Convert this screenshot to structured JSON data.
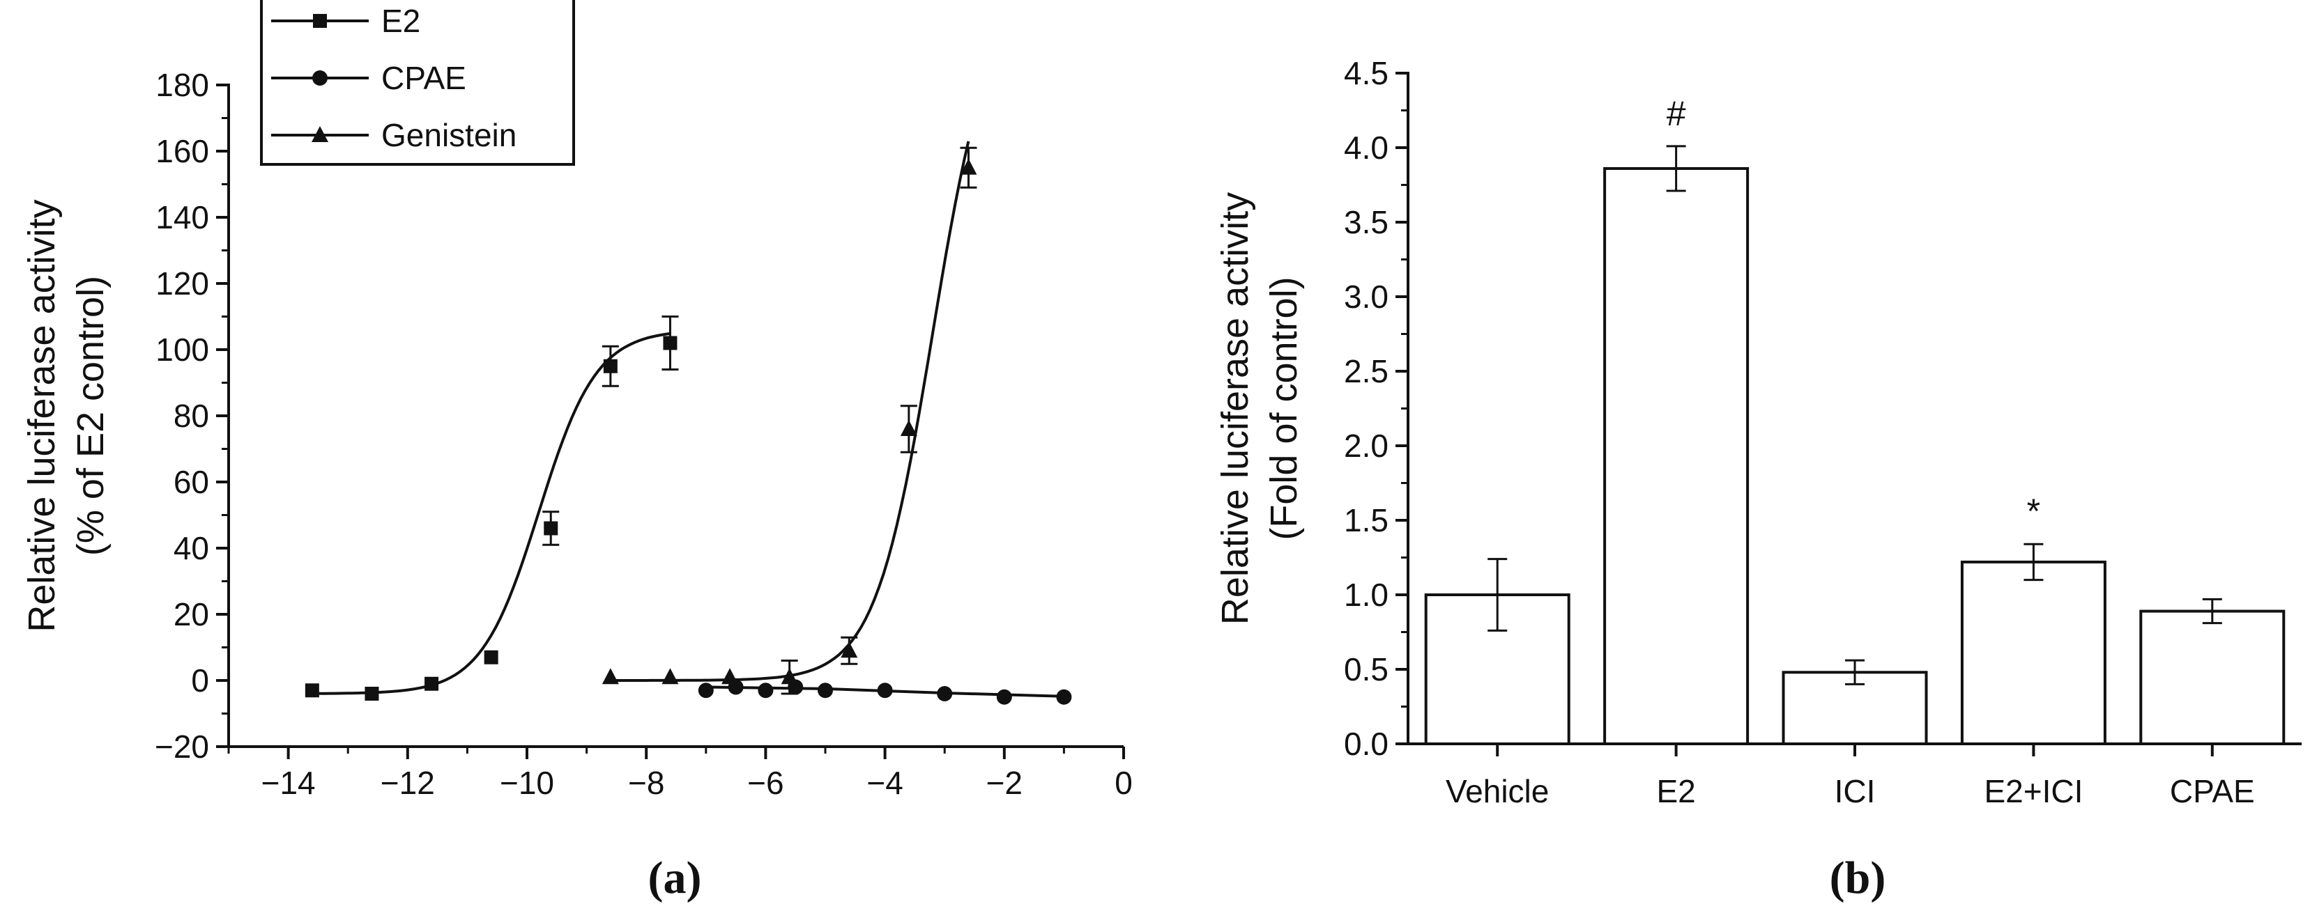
{
  "chart_data": [
    {
      "type": "scatter",
      "panel_label": "(a)",
      "xlabel": "",
      "ylabel_line1": "Relative luciferase activity",
      "ylabel_line2": "(% of E2 control)",
      "xlim": [
        -15,
        0
      ],
      "ylim": [
        -20,
        180
      ],
      "xticks": [
        -14,
        -12,
        -10,
        -8,
        -6,
        -4,
        -2,
        0
      ],
      "yticks": [
        -20,
        0,
        20,
        40,
        60,
        80,
        100,
        120,
        140,
        160,
        180
      ],
      "legend_position": "top-left",
      "series": [
        {
          "name": "E2",
          "marker": "square",
          "points": [
            {
              "x": -13.6,
              "y": -3,
              "err": 0
            },
            {
              "x": -12.6,
              "y": -4,
              "err": 0
            },
            {
              "x": -11.6,
              "y": -1,
              "err": 0
            },
            {
              "x": -10.6,
              "y": 7,
              "err": 0
            },
            {
              "x": -9.6,
              "y": 46,
              "err": 5
            },
            {
              "x": -8.6,
              "y": 95,
              "err": 6
            },
            {
              "x": -7.6,
              "y": 102,
              "err": 8
            }
          ],
          "fit": {
            "x_start": -13.6,
            "x_end": -7.6,
            "bottom": -4,
            "top": 106,
            "ec50_log": -9.8,
            "hill": 0.9
          }
        },
        {
          "name": "CPAE",
          "marker": "circle",
          "points": [
            {
              "x": -7,
              "y": -3,
              "err": 0
            },
            {
              "x": -6.5,
              "y": -2,
              "err": 0
            },
            {
              "x": -6,
              "y": -3,
              "err": 0
            },
            {
              "x": -5.5,
              "y": -2,
              "err": 0
            },
            {
              "x": -5,
              "y": -3,
              "err": 0
            },
            {
              "x": -4,
              "y": -3,
              "err": 0
            },
            {
              "x": -3,
              "y": -4,
              "err": 0
            },
            {
              "x": -2,
              "y": -5,
              "err": 0
            },
            {
              "x": -1,
              "y": -5,
              "err": 0
            }
          ],
          "fit_line": [
            [
              -7,
              -2
            ],
            [
              -5,
              -2.5
            ],
            [
              -3,
              -3.8
            ],
            [
              -1,
              -4.8
            ]
          ]
        },
        {
          "name": "Genistein",
          "marker": "triangle",
          "points": [
            {
              "x": -8.6,
              "y": 1,
              "err": 0
            },
            {
              "x": -7.6,
              "y": 1,
              "err": 0
            },
            {
              "x": -6.6,
              "y": 1,
              "err": 0
            },
            {
              "x": -5.6,
              "y": 1,
              "err": 5
            },
            {
              "x": -4.6,
              "y": 9,
              "err": 4
            },
            {
              "x": -3.6,
              "y": 76,
              "err": 7
            },
            {
              "x": -2.6,
              "y": 155,
              "err": 6
            }
          ],
          "fit": {
            "x_start": -8.6,
            "x_end": -2.6,
            "bottom": 0,
            "top": 210,
            "ec50_log": -3.2,
            "hill": 0.9
          }
        }
      ]
    },
    {
      "type": "bar",
      "panel_label": "(b)",
      "xlabel": "",
      "ylabel_line1": "Relative luciferase activity",
      "ylabel_line2": "(Fold of control)",
      "ylim": [
        0,
        4.5
      ],
      "yticks": [
        0.0,
        0.5,
        1.0,
        1.5,
        2.0,
        2.5,
        3.0,
        3.5,
        4.0,
        4.5
      ],
      "categories": [
        "Vehicle",
        "E2",
        "ICI",
        "E2+ICI",
        "CPAE"
      ],
      "values": [
        1.0,
        3.86,
        0.48,
        1.22,
        0.89
      ],
      "errors": [
        0.24,
        0.15,
        0.08,
        0.12,
        0.08
      ],
      "annotations": [
        "",
        "#",
        "",
        "*",
        ""
      ]
    }
  ]
}
